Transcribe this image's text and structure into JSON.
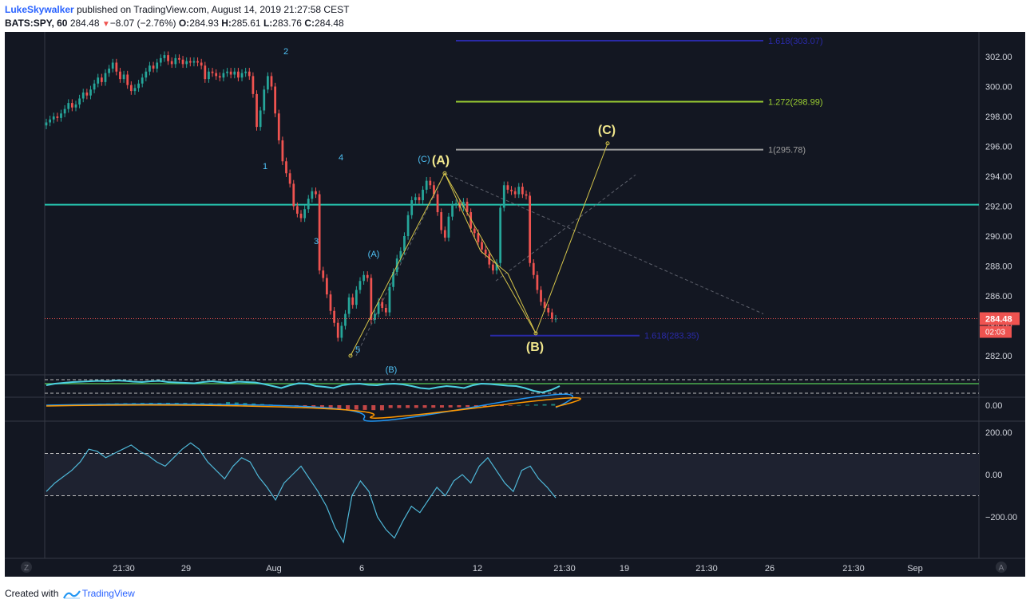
{
  "header": {
    "author": "LukeSkywalker",
    "published_text": "published on TradingView.com, August 14, 2019 21:27:58 CEST",
    "symbol": "BATS:SPY, 60",
    "last": "284.48",
    "change": "−8.07 (−2.76%)",
    "o_label": "O:",
    "o_val": "284.93",
    "h_label": "H:",
    "h_val": "285.61",
    "l_label": "L:",
    "l_val": "283.76",
    "c_label": "C:",
    "c_val": "284.48"
  },
  "footer": {
    "created_with": "Created with",
    "brand": "TradingView"
  },
  "colors": {
    "background": "#131722",
    "up": "#26a69a",
    "down": "#ef5350",
    "wave_white": "#f0e68c",
    "wave_cyan": "#4fc3f7",
    "fib_blue": "#2a2aa8",
    "fib_green": "#9acd32",
    "fib_grey": "#9e9e9e",
    "support": "#26c6b0"
  },
  "price_axis": {
    "ticks": [
      "302.00",
      "300.00",
      "298.00",
      "296.00",
      "294.00",
      "292.00",
      "290.00",
      "288.00",
      "286.00",
      "284.00",
      "282.00"
    ],
    "current_price": "284.48",
    "countdown": "02:03"
  },
  "macd_axis": {
    "ticks": [
      "0.00"
    ]
  },
  "cci_axis": {
    "ticks": [
      "200.00",
      "0.00",
      "−200.00"
    ]
  },
  "time_axis": {
    "labels": [
      "21:30",
      "29",
      "Aug",
      "6",
      "12",
      "21:30",
      "19",
      "21:30",
      "26",
      "21:30",
      "Sep"
    ],
    "left_button": "Z",
    "right_button": "A"
  },
  "fib_levels": [
    {
      "label": "1.618(303.07)",
      "price": 303.07,
      "color": "#2a2aa8"
    },
    {
      "label": "1.272(298.99)",
      "price": 298.99,
      "color": "#9acd32"
    },
    {
      "label": "1(295.78)",
      "price": 295.78,
      "color": "#9e9e9e"
    },
    {
      "label": "1.618(283.35)",
      "price": 283.35,
      "color": "#2a2aa8"
    }
  ],
  "support_price": 292.1,
  "wave_labels_major": [
    "(A)",
    "(B)",
    "(C)"
  ],
  "wave_labels_minor": [
    "1",
    "2",
    "3",
    "4",
    "5",
    "(A)",
    "(B)",
    "(C)"
  ],
  "chart_data": {
    "type": "candlestick",
    "symbol": "BATS:SPY",
    "interval": "60",
    "ylim": [
      281,
      303.3
    ],
    "last_price": 284.48,
    "candles_open": [
      297.4,
      297.6,
      297.8,
      298.0,
      297.9,
      298.2,
      298.5,
      298.9,
      298.6,
      298.8,
      299.2,
      299.6,
      299.4,
      299.8,
      300.2,
      300.6,
      300.3,
      300.9,
      301.2,
      301.6,
      301.0,
      300.5,
      300.8,
      300.1,
      299.7,
      299.9,
      300.2,
      300.6,
      301.0,
      301.4,
      301.2,
      301.6,
      301.9,
      302.1,
      301.7,
      301.5,
      301.9,
      301.8,
      301.5,
      301.7,
      301.6,
      301.7,
      301.6,
      301.4,
      300.5,
      301.0,
      300.9,
      300.7,
      300.6,
      300.9,
      301.0,
      300.8,
      301.0,
      300.6,
      300.9,
      301.0,
      300.7,
      299.5,
      297.3,
      298.4,
      299.8,
      300.7,
      300.0,
      298.2,
      296.4,
      295.0,
      294.2,
      293.5,
      292.0,
      291.5,
      291.2,
      291.8,
      292.5,
      293.0,
      292.8,
      287.7,
      287.2,
      286.1,
      285.0,
      284.2,
      283.2,
      284.0,
      284.8,
      285.9,
      285.4,
      286.4,
      287.0,
      287.4,
      287.2,
      284.4,
      284.8,
      285.6,
      285.2,
      284.9,
      286.6,
      287.6,
      288.5,
      289.0,
      290.0,
      291.4,
      292.4,
      292.6,
      292.4,
      293.1,
      293.7,
      293.4,
      292.8,
      291.6,
      290.4,
      289.9,
      291.3,
      292.1,
      292.2,
      291.9,
      292.3,
      291.6,
      290.5,
      290.2,
      289.6,
      289.1,
      288.8,
      288.1,
      287.7,
      288.2,
      291.9,
      293.4,
      293.1,
      293.0,
      292.8,
      293.3,
      292.8,
      292.7,
      288.2,
      287.4,
      286.4,
      285.6,
      285.2,
      284.9,
      284.48
    ],
    "candles_close": [
      297.6,
      297.8,
      298.0,
      297.9,
      298.2,
      298.5,
      298.9,
      298.6,
      298.8,
      299.2,
      299.6,
      299.4,
      299.8,
      300.2,
      300.6,
      300.3,
      300.9,
      301.2,
      301.6,
      301.0,
      300.5,
      300.8,
      300.1,
      299.7,
      299.9,
      300.2,
      300.6,
      301.0,
      301.4,
      301.2,
      301.6,
      301.9,
      302.1,
      301.7,
      301.5,
      301.9,
      301.8,
      301.5,
      301.7,
      301.6,
      301.7,
      301.6,
      301.4,
      300.5,
      301.0,
      300.9,
      300.7,
      300.6,
      300.9,
      301.0,
      300.8,
      301.0,
      300.6,
      300.9,
      301.0,
      300.7,
      299.5,
      297.3,
      298.4,
      299.8,
      300.7,
      300.0,
      298.2,
      296.4,
      295.0,
      294.2,
      293.5,
      292.0,
      291.5,
      291.2,
      291.8,
      292.5,
      293.0,
      292.8,
      287.7,
      287.2,
      286.1,
      285.0,
      284.2,
      283.2,
      284.0,
      284.8,
      285.9,
      285.4,
      286.4,
      287.0,
      287.4,
      287.2,
      284.4,
      284.8,
      285.6,
      285.2,
      284.9,
      286.6,
      287.6,
      288.5,
      289.0,
      290.0,
      291.4,
      292.4,
      292.6,
      292.4,
      293.1,
      293.7,
      293.4,
      292.8,
      291.6,
      290.4,
      289.9,
      291.3,
      292.1,
      292.2,
      291.9,
      292.3,
      291.6,
      290.5,
      290.2,
      289.6,
      289.1,
      288.8,
      288.1,
      287.7,
      288.2,
      291.9,
      293.4,
      293.1,
      293.0,
      292.8,
      293.3,
      292.8,
      292.7,
      288.2,
      287.4,
      286.4,
      285.6,
      285.2,
      284.9,
      284.48,
      284.48
    ],
    "wave_path": [
      [
        131,
        282.0
      ],
      [
        151,
        294.2
      ],
      [
        173,
        283.5
      ],
      [
        188,
        296.2
      ]
    ],
    "support_level": 292.1,
    "rsi_series": [
      62,
      66,
      68,
      70,
      71,
      72,
      73,
      72,
      74,
      73,
      71,
      70,
      72,
      73,
      70,
      69,
      68,
      67,
      70,
      72,
      70,
      68,
      71,
      70,
      69,
      65,
      60,
      55,
      62,
      67,
      66,
      60,
      58,
      55,
      62,
      65,
      66,
      63,
      62,
      65,
      66,
      64,
      60,
      55,
      53,
      57,
      60,
      58,
      55,
      62,
      66,
      65,
      63,
      61,
      60,
      55,
      48,
      44,
      50,
      60
    ],
    "cci_series": [
      -80,
      -40,
      -10,
      20,
      60,
      120,
      110,
      80,
      100,
      120,
      140,
      110,
      90,
      60,
      40,
      80,
      120,
      150,
      120,
      60,
      20,
      -20,
      40,
      80,
      60,
      -10,
      -60,
      -120,
      -40,
      0,
      40,
      -20,
      -80,
      -150,
      -250,
      -320,
      -100,
      -30,
      -80,
      -200,
      -260,
      -300,
      -220,
      -150,
      -180,
      -120,
      -60,
      -100,
      -30,
      0,
      -40,
      40,
      80,
      20,
      -40,
      -80,
      20,
      40,
      -20,
      -60,
      -110
    ]
  }
}
